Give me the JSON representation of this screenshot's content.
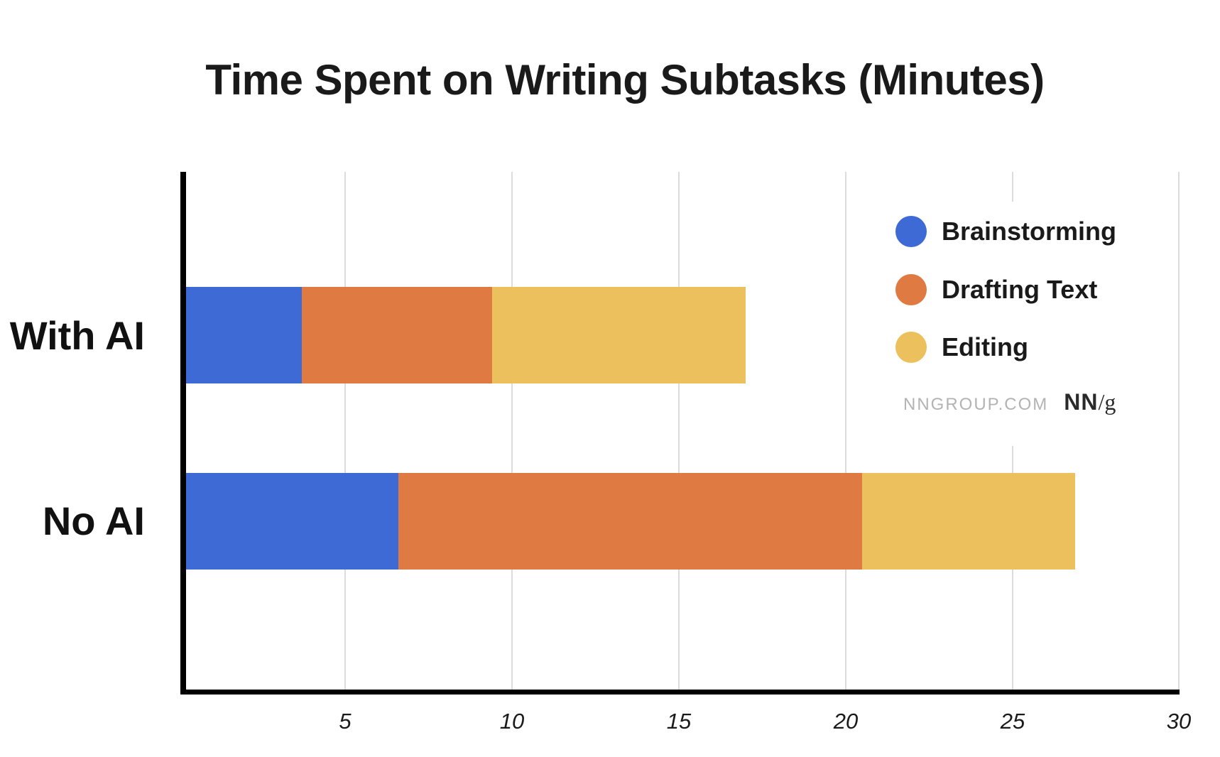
{
  "chart_data": {
    "type": "bar",
    "orientation": "horizontal",
    "stacked": true,
    "title": "Time Spent on Writing Subtasks (Minutes)",
    "xlabel": "",
    "ylabel": "",
    "categories": [
      "With AI",
      "No AI"
    ],
    "series": [
      {
        "name": "Brainstorming",
        "color": "#3d6ad4",
        "values": [
          3.7,
          6.6
        ]
      },
      {
        "name": "Drafting Text",
        "color": "#de7a42",
        "values": [
          5.7,
          13.9
        ]
      },
      {
        "name": "Editing",
        "color": "#ecc05c",
        "values": [
          7.6,
          6.4
        ]
      }
    ],
    "totals": [
      17.0,
      26.9
    ],
    "xlim": [
      0,
      30
    ],
    "xticks": [
      5,
      10,
      15,
      20,
      25,
      30
    ],
    "xtick_labels": [
      "5",
      "10",
      "15",
      "20",
      "25",
      "30"
    ],
    "grid": {
      "vertical": true,
      "horizontal": false
    },
    "legend_position": "upper right"
  },
  "title": "Time Spent on Writing Subtasks (Minutes)",
  "categories": {
    "with_ai": "With AI",
    "no_ai": "No AI"
  },
  "legend": {
    "items": [
      {
        "label": "Brainstorming",
        "color": "#3d6ad4"
      },
      {
        "label": "Drafting Text",
        "color": "#de7a42"
      },
      {
        "label": "Editing",
        "color": "#ecc05c"
      }
    ]
  },
  "brand": {
    "url": "NNGROUP.COM",
    "logo_bold": "NN",
    "logo_rest": "/g"
  },
  "axis": {
    "ticks": [
      "5",
      "10",
      "15",
      "20",
      "25",
      "30"
    ]
  }
}
